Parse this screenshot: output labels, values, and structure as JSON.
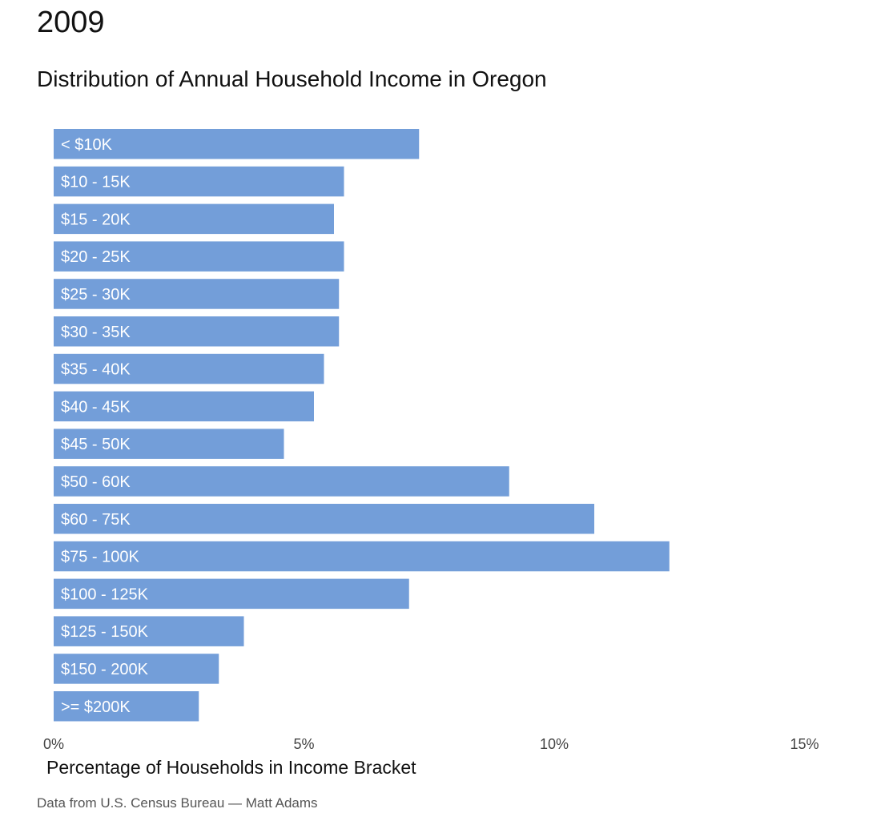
{
  "year_title": "2009",
  "colors": {
    "bar": "#739ed9",
    "bar_label": "#ffffff",
    "tick_label": "#444444"
  },
  "chart_data": {
    "type": "bar",
    "orientation": "horizontal",
    "title": "Distribution of Annual Household Income in Oregon",
    "xlabel": "Percentage of Households in Income Bracket",
    "ylabel": "",
    "xlim": [
      0,
      15
    ],
    "x_ticks": [
      0,
      5,
      10,
      15
    ],
    "x_tick_labels": [
      "0%",
      "5%",
      "10%",
      "15%"
    ],
    "grid": false,
    "categories": [
      "< $10K",
      "$10 - 15K",
      "$15 - 20K",
      "$20 - 25K",
      "$25 - 30K",
      "$30 - 35K",
      "$35 - 40K",
      "$40 - 45K",
      "$45 - 50K",
      "$50 - 60K",
      "$60 - 75K",
      "$75 - 100K",
      "$100 - 125K",
      "$125 - 150K",
      "$150 - 200K",
      ">= $200K"
    ],
    "values": [
      7.3,
      5.8,
      5.6,
      5.8,
      5.7,
      5.7,
      5.4,
      5.2,
      4.6,
      9.1,
      10.8,
      12.3,
      7.1,
      3.8,
      3.3,
      2.9
    ]
  },
  "credit": "Data from U.S. Census Bureau — Matt Adams"
}
